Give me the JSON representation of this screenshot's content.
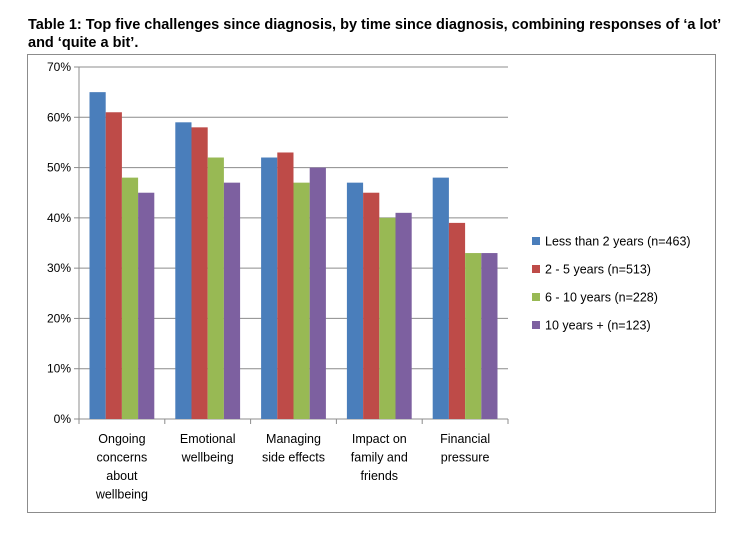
{
  "page": {
    "title": "Table 1: Top five challenges since diagnosis, by time since diagnosis, combining responses of ‘a lot’ and ‘quite a bit’."
  },
  "chart_data": {
    "type": "bar",
    "title": "",
    "xlabel": "",
    "ylabel": "",
    "ylim": [
      0,
      70
    ],
    "yticks": [
      "0%",
      "10%",
      "20%",
      "30%",
      "40%",
      "50%",
      "60%",
      "70%"
    ],
    "grid": true,
    "legend_position": "right",
    "categories": [
      [
        "Ongoing",
        "concerns",
        "about",
        "wellbeing"
      ],
      [
        "Emotional",
        "wellbeing"
      ],
      [
        "Managing",
        "side effects"
      ],
      [
        "Impact on",
        "family and",
        "friends"
      ],
      [
        "Financial",
        "pressure"
      ]
    ],
    "series": [
      {
        "name": "Less than 2 years (n=463)",
        "color": "#4a7ebb",
        "values": [
          65,
          59,
          52,
          47,
          48
        ]
      },
      {
        "name": "2 - 5 years (n=513)",
        "color": "#be4b48",
        "values": [
          61,
          58,
          53,
          45,
          39
        ]
      },
      {
        "name": "6 - 10 years (n=228)",
        "color": "#98b954",
        "values": [
          48,
          52,
          47,
          40,
          33
        ]
      },
      {
        "name": "10 years + (n=123)",
        "color": "#7d60a0",
        "values": [
          45,
          47,
          50,
          41,
          33
        ]
      }
    ]
  }
}
